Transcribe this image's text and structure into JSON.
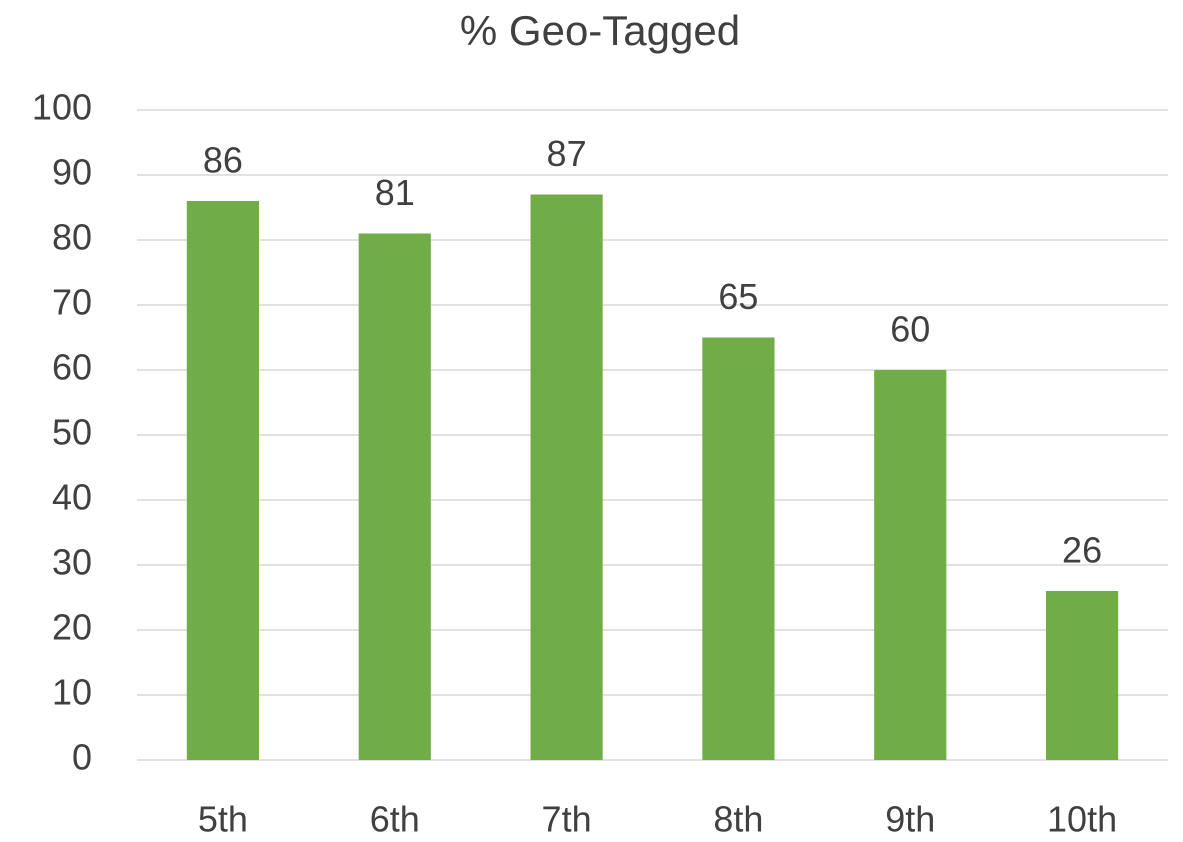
{
  "chart_data": {
    "type": "bar",
    "title": "% Geo-Tagged",
    "categories": [
      "5th",
      "6th",
      "7th",
      "8th",
      "9th",
      "10th"
    ],
    "values": [
      86,
      81,
      87,
      65,
      60,
      26
    ],
    "color": "#70ad47",
    "ylim": [
      0,
      100
    ],
    "yticks": [
      0,
      10,
      20,
      30,
      40,
      50,
      60,
      70,
      80,
      90,
      100
    ],
    "grid": true
  }
}
